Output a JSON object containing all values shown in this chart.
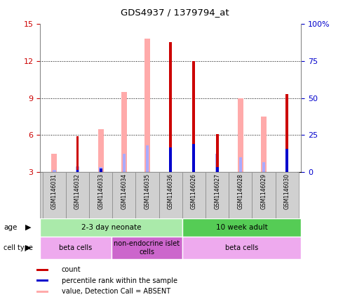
{
  "title": "GDS4937 / 1379794_at",
  "samples": [
    "GSM1146031",
    "GSM1146032",
    "GSM1146033",
    "GSM1146034",
    "GSM1146035",
    "GSM1146036",
    "GSM1146026",
    "GSM1146027",
    "GSM1146028",
    "GSM1146029",
    "GSM1146030"
  ],
  "count_values": [
    0,
    5.9,
    0,
    0,
    0,
    13.5,
    12.0,
    6.1,
    0,
    0,
    9.3
  ],
  "absent_value_values": [
    4.5,
    0,
    6.5,
    9.5,
    13.8,
    0,
    0,
    0,
    9.0,
    7.5,
    0
  ],
  "absent_rank_values": [
    3.2,
    3.5,
    3.4,
    4.5,
    5.2,
    0,
    0,
    4.5,
    4.2,
    3.8,
    0
  ],
  "percentile_rank_values": [
    0,
    3.2,
    3.3,
    0,
    0,
    5.0,
    5.3,
    3.4,
    0,
    0,
    4.9
  ],
  "ylim_left": [
    3,
    15
  ],
  "yticks_left": [
    3,
    6,
    9,
    12,
    15
  ],
  "yticks_right": [
    0,
    25,
    50,
    75,
    100
  ],
  "yticklabels_right": [
    "0",
    "25",
    "50",
    "75",
    "100%"
  ],
  "left_color": "#cc0000",
  "right_color": "#0000cc",
  "absent_value_color": "#ffaaaa",
  "absent_rank_color": "#aaaaff",
  "count_color": "#cc0000",
  "percentile_color": "#0000cc",
  "age_groups": [
    {
      "label": "2-3 day neonate",
      "start": 0,
      "end": 6,
      "color": "#aaeaaa"
    },
    {
      "label": "10 week adult",
      "start": 6,
      "end": 11,
      "color": "#55cc55"
    }
  ],
  "cell_type_groups": [
    {
      "label": "beta cells",
      "start": 0,
      "end": 3,
      "color": "#eeaaee"
    },
    {
      "label": "non-endocrine islet\ncells",
      "start": 3,
      "end": 6,
      "color": "#cc66cc"
    },
    {
      "label": "beta cells",
      "start": 6,
      "end": 11,
      "color": "#eeaaee"
    }
  ],
  "legend_items": [
    {
      "color": "#cc0000",
      "label": "count"
    },
    {
      "color": "#0000cc",
      "label": "percentile rank within the sample"
    },
    {
      "color": "#ffaaaa",
      "label": "value, Detection Call = ABSENT"
    },
    {
      "color": "#aaaaff",
      "label": "rank, Detection Call = ABSENT"
    }
  ],
  "thin_bar_width": 0.12,
  "wide_bar_width": 0.25,
  "background_color": "#ffffff"
}
